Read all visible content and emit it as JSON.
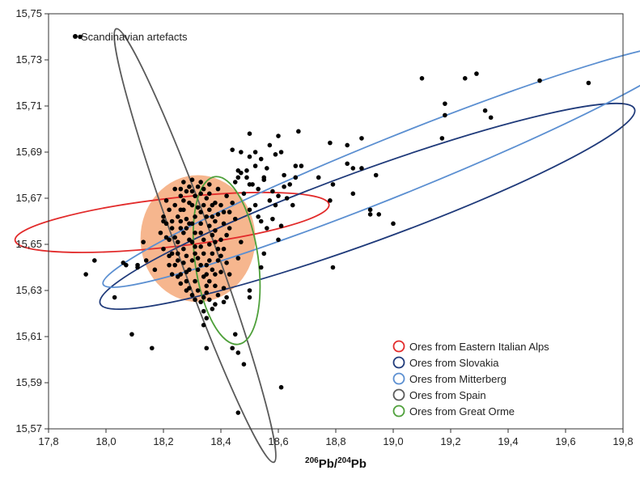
{
  "chart_data": {
    "type": "scatter",
    "xlabel": "206Pb/204Pb",
    "xlabel_parts": {
      "mass1": "206",
      "el1": "Pb/",
      "mass2": "204",
      "el2": "Pb"
    },
    "ylabel": "",
    "xlim": [
      17.8,
      19.8
    ],
    "ylim": [
      15.57,
      15.75
    ],
    "x_ticks": [
      "17,8",
      "18,0",
      "18,2",
      "18,4",
      "18,6",
      "18,8",
      "19,0",
      "19,2",
      "19,4",
      "19,6",
      "19,8"
    ],
    "y_ticks": [
      "15,57",
      "15,59",
      "15,61",
      "15,63",
      "15,65",
      "15,67",
      "15,69",
      "15,71",
      "15,73",
      "15,75"
    ],
    "grid": false,
    "legend_position": "bottom-right",
    "point_series": {
      "name": "Scandinavian artefacts",
      "color": "#000000",
      "points": [
        [
          17.91,
          15.74
        ],
        [
          17.93,
          15.637
        ],
        [
          17.96,
          15.643
        ],
        [
          18.03,
          15.627
        ],
        [
          18.06,
          15.642
        ],
        [
          18.07,
          15.641
        ],
        [
          18.09,
          15.611
        ],
        [
          18.11,
          15.641
        ],
        [
          18.11,
          15.64
        ],
        [
          18.13,
          15.651
        ],
        [
          18.14,
          15.643
        ],
        [
          18.16,
          15.605
        ],
        [
          18.17,
          15.639
        ],
        [
          18.35,
          15.605
        ],
        [
          18.44,
          15.605
        ],
        [
          18.45,
          15.611
        ],
        [
          18.46,
          15.603
        ],
        [
          18.48,
          15.598
        ],
        [
          18.46,
          15.577
        ],
        [
          18.61,
          15.588
        ],
        [
          18.34,
          15.615
        ],
        [
          18.35,
          15.618
        ],
        [
          18.34,
          15.621
        ],
        [
          18.37,
          15.622
        ],
        [
          18.38,
          15.624
        ],
        [
          18.41,
          15.625
        ],
        [
          18.42,
          15.627
        ],
        [
          18.5,
          15.627
        ],
        [
          18.5,
          15.63
        ],
        [
          18.54,
          15.64
        ],
        [
          18.55,
          15.646
        ],
        [
          18.54,
          15.66
        ],
        [
          18.56,
          15.657
        ],
        [
          18.58,
          15.661
        ],
        [
          18.6,
          15.652
        ],
        [
          18.61,
          15.658
        ],
        [
          18.5,
          15.665
        ],
        [
          18.52,
          15.667
        ],
        [
          18.53,
          15.674
        ],
        [
          18.55,
          15.678
        ],
        [
          18.57,
          15.669
        ],
        [
          18.6,
          15.671
        ],
        [
          18.62,
          15.675
        ],
        [
          18.62,
          15.68
        ],
        [
          18.64,
          15.676
        ],
        [
          18.66,
          15.679
        ],
        [
          18.66,
          15.684
        ],
        [
          18.68,
          15.684
        ],
        [
          18.67,
          15.699
        ],
        [
          18.74,
          15.679
        ],
        [
          18.78,
          15.694
        ],
        [
          18.79,
          15.676
        ],
        [
          18.78,
          15.669
        ],
        [
          18.84,
          15.693
        ],
        [
          18.84,
          15.685
        ],
        [
          18.86,
          15.683
        ],
        [
          18.86,
          15.672
        ],
        [
          18.89,
          15.696
        ],
        [
          18.89,
          15.683
        ],
        [
          18.92,
          15.665
        ],
        [
          18.92,
          15.663
        ],
        [
          18.94,
          15.68
        ],
        [
          18.95,
          15.663
        ],
        [
          19.0,
          15.659
        ],
        [
          18.79,
          15.64
        ],
        [
          19.1,
          15.722
        ],
        [
          19.17,
          15.696
        ],
        [
          19.18,
          15.706
        ],
        [
          19.18,
          15.711
        ],
        [
          19.25,
          15.722
        ],
        [
          19.29,
          15.724
        ],
        [
          19.32,
          15.708
        ],
        [
          19.34,
          15.705
        ],
        [
          19.51,
          15.721
        ],
        [
          19.68,
          15.72
        ],
        [
          18.44,
          15.691
        ],
        [
          18.46,
          15.682
        ],
        [
          18.47,
          15.69
        ],
        [
          18.5,
          15.698
        ],
        [
          18.5,
          15.688
        ],
        [
          18.52,
          15.684
        ],
        [
          18.54,
          15.687
        ],
        [
          18.55,
          15.679
        ],
        [
          18.57,
          15.693
        ],
        [
          18.59,
          15.689
        ],
        [
          18.6,
          15.697
        ],
        [
          18.49,
          15.679
        ],
        [
          18.5,
          15.676
        ],
        [
          18.48,
          15.672
        ],
        [
          18.59,
          15.667
        ],
        [
          18.53,
          15.662
        ],
        [
          18.46,
          15.679
        ],
        [
          18.47,
          15.681
        ],
        [
          18.51,
          15.676
        ],
        [
          18.49,
          15.682
        ],
        [
          18.61,
          15.69
        ],
        [
          18.63,
          15.67
        ],
        [
          18.65,
          15.667
        ],
        [
          18.58,
          15.673
        ],
        [
          18.56,
          15.683
        ],
        [
          18.52,
          15.69
        ],
        [
          18.45,
          15.677
        ],
        [
          18.44,
          15.668
        ],
        [
          18.45,
          15.661
        ],
        [
          18.47,
          15.651
        ],
        [
          18.46,
          15.644
        ],
        [
          18.43,
          15.637
        ],
        [
          18.41,
          15.631
        ],
        [
          18.39,
          15.628
        ],
        [
          18.36,
          15.626
        ],
        [
          18.33,
          15.625
        ],
        [
          18.31,
          15.626
        ],
        [
          18.28,
          15.63
        ],
        [
          18.25,
          15.636
        ],
        [
          18.22,
          15.641
        ],
        [
          18.2,
          15.648
        ],
        [
          18.19,
          15.655
        ],
        [
          18.2,
          15.662
        ],
        [
          18.21,
          15.669
        ],
        [
          18.24,
          15.674
        ],
        [
          18.27,
          15.677
        ],
        [
          18.3,
          15.678
        ],
        [
          18.33,
          15.677
        ],
        [
          18.36,
          15.676
        ],
        [
          18.39,
          15.674
        ],
        [
          18.42,
          15.671
        ],
        [
          18.21,
          15.653
        ],
        [
          18.23,
          15.657
        ],
        [
          18.25,
          15.662
        ],
        [
          18.27,
          15.665
        ],
        [
          18.29,
          15.668
        ],
        [
          18.31,
          15.671
        ],
        [
          18.33,
          15.672
        ],
        [
          18.35,
          15.67
        ],
        [
          18.37,
          15.667
        ],
        [
          18.39,
          15.663
        ],
        [
          18.41,
          15.659
        ],
        [
          18.42,
          15.654
        ],
        [
          18.41,
          15.648
        ],
        [
          18.39,
          15.643
        ],
        [
          18.37,
          15.639
        ],
        [
          18.34,
          15.636
        ],
        [
          18.31,
          15.634
        ],
        [
          18.28,
          15.634
        ],
        [
          18.26,
          15.637
        ],
        [
          18.24,
          15.641
        ],
        [
          18.23,
          15.646
        ],
        [
          18.25,
          15.651
        ],
        [
          18.27,
          15.655
        ],
        [
          18.29,
          15.659
        ],
        [
          18.31,
          15.662
        ],
        [
          18.33,
          15.664
        ],
        [
          18.35,
          15.662
        ],
        [
          18.36,
          15.658
        ],
        [
          18.37,
          15.654
        ],
        [
          18.36,
          15.65
        ],
        [
          18.34,
          15.646
        ],
        [
          18.32,
          15.644
        ],
        [
          18.3,
          15.643
        ],
        [
          18.28,
          15.645
        ],
        [
          18.27,
          15.648
        ],
        [
          18.29,
          15.652
        ],
        [
          18.31,
          15.655
        ],
        [
          18.33,
          15.655
        ],
        [
          18.34,
          15.652
        ],
        [
          18.33,
          15.649
        ],
        [
          18.31,
          15.649
        ],
        [
          18.3,
          15.651
        ],
        [
          18.24,
          15.667
        ],
        [
          18.26,
          15.671
        ],
        [
          18.28,
          15.673
        ],
        [
          18.3,
          15.667
        ],
        [
          18.32,
          15.666
        ],
        [
          18.34,
          15.667
        ],
        [
          18.36,
          15.665
        ],
        [
          18.38,
          15.66
        ],
        [
          18.4,
          15.652
        ],
        [
          18.4,
          15.645
        ],
        [
          18.38,
          15.637
        ],
        [
          18.35,
          15.632
        ],
        [
          18.32,
          15.63
        ],
        [
          18.29,
          15.631
        ],
        [
          18.26,
          15.633
        ],
        [
          18.23,
          15.637
        ],
        [
          18.22,
          15.645
        ],
        [
          18.22,
          15.652
        ],
        [
          18.23,
          15.66
        ],
        [
          18.26,
          15.665
        ],
        [
          18.28,
          15.661
        ],
        [
          18.26,
          15.657
        ],
        [
          18.24,
          15.653
        ],
        [
          18.25,
          15.646
        ],
        [
          18.27,
          15.642
        ],
        [
          18.29,
          15.639
        ],
        [
          18.32,
          15.639
        ],
        [
          18.35,
          15.641
        ],
        [
          18.37,
          15.646
        ],
        [
          18.38,
          15.651
        ],
        [
          18.38,
          15.656
        ],
        [
          18.36,
          15.672
        ],
        [
          18.34,
          15.674
        ],
        [
          18.32,
          15.675
        ],
        [
          18.29,
          15.675
        ],
        [
          18.26,
          15.674
        ],
        [
          18.43,
          15.664
        ],
        [
          18.43,
          15.657
        ],
        [
          18.42,
          15.642
        ],
        [
          18.4,
          15.638
        ],
        [
          18.36,
          15.634
        ],
        [
          18.21,
          15.659
        ],
        [
          18.22,
          15.665
        ],
        [
          18.2,
          15.66
        ],
        [
          18.27,
          15.669
        ],
        [
          18.3,
          15.673
        ],
        [
          18.37,
          15.662
        ],
        [
          18.38,
          15.668
        ],
        [
          18.4,
          15.667
        ],
        [
          18.41,
          15.664
        ],
        [
          18.33,
          15.659
        ],
        [
          18.3,
          15.659
        ],
        [
          18.28,
          15.657
        ],
        [
          18.26,
          15.66
        ],
        [
          18.31,
          15.646
        ],
        [
          18.33,
          15.641
        ],
        [
          18.36,
          15.643
        ],
        [
          18.28,
          15.638
        ],
        [
          18.25,
          15.643
        ],
        [
          18.35,
          15.629
        ],
        [
          18.3,
          15.628
        ],
        [
          18.34,
          15.627
        ],
        [
          18.38,
          15.632
        ],
        [
          18.39,
          15.648
        ],
        [
          18.35,
          15.637
        ]
      ]
    },
    "highlight_disc": {
      "cx": 18.32,
      "cy": 15.6525,
      "rx": 0.2,
      "ry": 0.0275,
      "color": "#f5a97a"
    },
    "ellipse_series": [
      {
        "name": "Ores from Eastern Italian Alps",
        "color": "#e22b2b",
        "cx": 18.23,
        "cy": 15.6595,
        "a": 0.55,
        "b": 0.0105,
        "angle": -6.5
      },
      {
        "name": "Ores from Slovakia",
        "color": "#1f3a7a",
        "cx": 18.91,
        "cy": 15.6665,
        "a": 0.99,
        "b": 0.0155,
        "angle": -20
      },
      {
        "name": "Ores from Mitterberg",
        "color": "#5b8fd1",
        "cx": 19.01,
        "cy": 15.684,
        "a": 1.1,
        "b": 0.0125,
        "angle": -22
      },
      {
        "name": "Ores from Spain",
        "color": "#5a5a5a",
        "cx": 18.31,
        "cy": 15.6495,
        "a": 0.065,
        "b": 0.1,
        "angle": -20
      },
      {
        "name": "Ores from Great Orme",
        "color": "#4ea03a",
        "cx": 18.42,
        "cy": 15.643,
        "a": 0.11,
        "b": 0.0367,
        "angle": -8
      }
    ]
  }
}
